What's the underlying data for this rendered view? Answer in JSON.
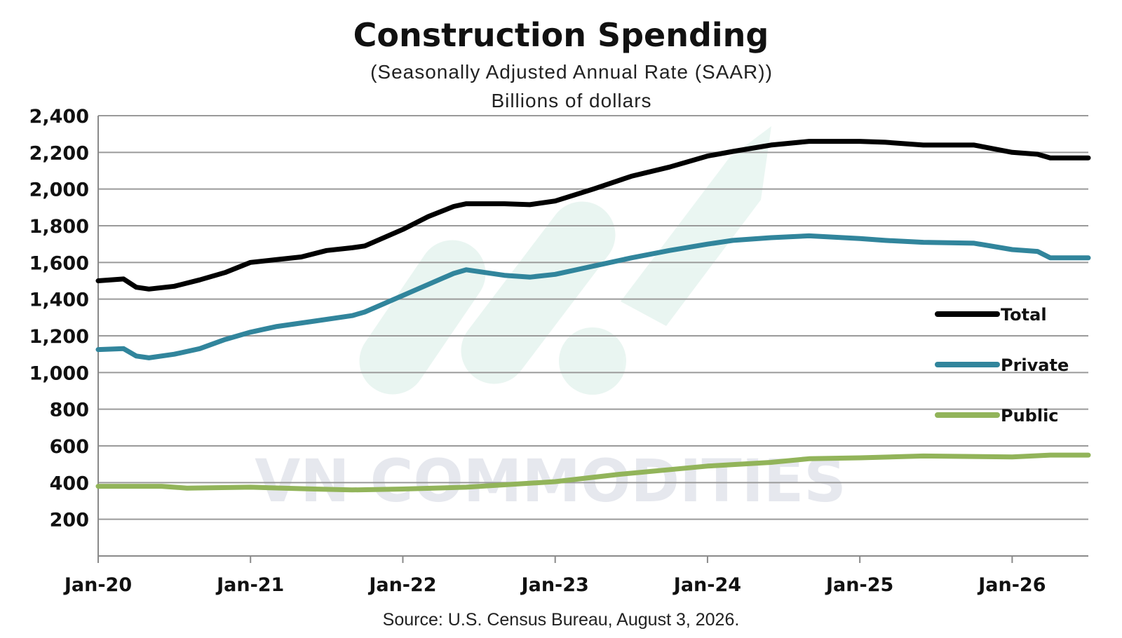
{
  "chart_data": {
    "type": "line",
    "title": "Construction Spending",
    "subtitle": "(Seasonally Adjusted Annual Rate (SAAR))",
    "units": "Billions of dollars",
    "source": "Source: U.S. Census Bureau, August 3, 2026.",
    "watermark": "VN COMMODITIES",
    "xlabel": "",
    "ylabel": "",
    "ylim": [
      0,
      2400
    ],
    "xlim": [
      "2020-01",
      "2026-07"
    ],
    "yticks": [
      200,
      400,
      600,
      800,
      1000,
      1200,
      1400,
      1600,
      1800,
      2000,
      2200,
      2400
    ],
    "ytick_labels": [
      "200",
      "400",
      "600",
      "800",
      "1,000",
      "1,200",
      "1,400",
      "1,600",
      "1,800",
      "2,000",
      "2,200",
      "2,400"
    ],
    "xticks": [
      "2020-01",
      "2021-01",
      "2022-01",
      "2023-01",
      "2024-01",
      "2025-01",
      "2026-01"
    ],
    "xtick_labels": [
      "Jan-20",
      "Jan-21",
      "Jan-22",
      "Jan-23",
      "Jan-24",
      "Jan-25",
      "Jan-26"
    ],
    "grid": true,
    "legend_position": "right",
    "series": [
      {
        "name": "Total",
        "color": "#000000",
        "points": [
          [
            "2020-01",
            1500
          ],
          [
            "2020-03",
            1510
          ],
          [
            "2020-04",
            1465
          ],
          [
            "2020-05",
            1455
          ],
          [
            "2020-07",
            1470
          ],
          [
            "2020-09",
            1505
          ],
          [
            "2020-11",
            1545
          ],
          [
            "2021-01",
            1600
          ],
          [
            "2021-03",
            1615
          ],
          [
            "2021-05",
            1630
          ],
          [
            "2021-07",
            1665
          ],
          [
            "2021-09",
            1680
          ],
          [
            "2021-10",
            1690
          ],
          [
            "2022-01",
            1780
          ],
          [
            "2022-03",
            1850
          ],
          [
            "2022-05",
            1905
          ],
          [
            "2022-06",
            1920
          ],
          [
            "2022-09",
            1920
          ],
          [
            "2022-11",
            1915
          ],
          [
            "2023-01",
            1935
          ],
          [
            "2023-04",
            2000
          ],
          [
            "2023-07",
            2070
          ],
          [
            "2023-10",
            2120
          ],
          [
            "2024-01",
            2180
          ],
          [
            "2024-03",
            2205
          ],
          [
            "2024-06",
            2240
          ],
          [
            "2024-09",
            2260
          ],
          [
            "2025-01",
            2260
          ],
          [
            "2025-03",
            2255
          ],
          [
            "2025-06",
            2240
          ],
          [
            "2025-10",
            2240
          ],
          [
            "2026-01",
            2200
          ],
          [
            "2026-03",
            2190
          ],
          [
            "2026-04",
            2170
          ],
          [
            "2026-07",
            2170
          ]
        ]
      },
      {
        "name": "Private",
        "color": "#31859c",
        "points": [
          [
            "2020-01",
            1125
          ],
          [
            "2020-03",
            1130
          ],
          [
            "2020-04",
            1090
          ],
          [
            "2020-05",
            1080
          ],
          [
            "2020-07",
            1100
          ],
          [
            "2020-09",
            1130
          ],
          [
            "2020-11",
            1180
          ],
          [
            "2021-01",
            1220
          ],
          [
            "2021-03",
            1250
          ],
          [
            "2021-06",
            1280
          ],
          [
            "2021-09",
            1310
          ],
          [
            "2021-10",
            1330
          ],
          [
            "2022-01",
            1420
          ],
          [
            "2022-03",
            1480
          ],
          [
            "2022-05",
            1540
          ],
          [
            "2022-06",
            1560
          ],
          [
            "2022-09",
            1530
          ],
          [
            "2022-11",
            1520
          ],
          [
            "2023-01",
            1535
          ],
          [
            "2023-04",
            1580
          ],
          [
            "2023-07",
            1625
          ],
          [
            "2023-10",
            1665
          ],
          [
            "2024-01",
            1700
          ],
          [
            "2024-03",
            1720
          ],
          [
            "2024-06",
            1735
          ],
          [
            "2024-09",
            1745
          ],
          [
            "2025-01",
            1730
          ],
          [
            "2025-03",
            1720
          ],
          [
            "2025-06",
            1710
          ],
          [
            "2025-10",
            1705
          ],
          [
            "2026-01",
            1670
          ],
          [
            "2026-03",
            1660
          ],
          [
            "2026-04",
            1625
          ],
          [
            "2026-07",
            1625
          ]
        ]
      },
      {
        "name": "Public",
        "color": "#92b45a",
        "points": [
          [
            "2020-01",
            380
          ],
          [
            "2020-06",
            380
          ],
          [
            "2020-08",
            370
          ],
          [
            "2021-01",
            375
          ],
          [
            "2021-06",
            365
          ],
          [
            "2021-09",
            360
          ],
          [
            "2022-01",
            365
          ],
          [
            "2022-06",
            375
          ],
          [
            "2023-01",
            405
          ],
          [
            "2023-06",
            445
          ],
          [
            "2024-01",
            490
          ],
          [
            "2024-06",
            510
          ],
          [
            "2024-09",
            530
          ],
          [
            "2025-01",
            535
          ],
          [
            "2025-06",
            545
          ],
          [
            "2026-01",
            540
          ],
          [
            "2026-04",
            550
          ],
          [
            "2026-07",
            550
          ]
        ]
      }
    ]
  }
}
